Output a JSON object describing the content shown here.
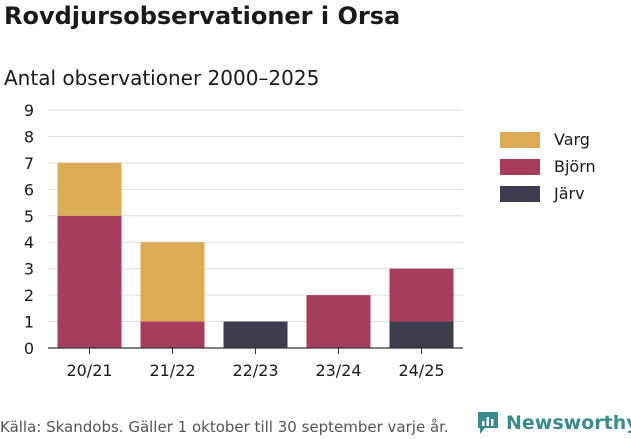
{
  "header": {
    "title": "Rovdjursobservationer i Orsa",
    "subtitle": "Antal observationer 2000–2025"
  },
  "footer": {
    "source": "Källa: Skandobs. Gäller 1 oktober till 30 september varje år.",
    "brand": "Newsworthy"
  },
  "colors": {
    "varg": "#dbab55",
    "bjorn": "#a63d5c",
    "jarv": "#3e3d4f",
    "brand": "#3a8b8b"
  },
  "chart_data": {
    "type": "bar",
    "stacked": true,
    "title": "Rovdjursobservationer i Orsa",
    "subtitle": "Antal observationer 2000–2025",
    "xlabel": "",
    "ylabel": "",
    "categories": [
      "20/21",
      "21/22",
      "22/23",
      "23/24",
      "24/25"
    ],
    "series": [
      {
        "name": "Järv",
        "key": "jarv",
        "values": [
          0,
          0,
          1,
          0,
          1
        ]
      },
      {
        "name": "Björn",
        "key": "bjorn",
        "values": [
          5,
          1,
          0,
          2,
          2
        ]
      },
      {
        "name": "Varg",
        "key": "varg",
        "values": [
          2,
          3,
          0,
          0,
          0
        ]
      }
    ],
    "legend": [
      "Varg",
      "Björn",
      "Järv"
    ],
    "ylim": [
      0,
      9
    ],
    "yticks": [
      0,
      1,
      2,
      3,
      4,
      5,
      6,
      7,
      8,
      9
    ],
    "grid": true,
    "legend_position": "right"
  }
}
